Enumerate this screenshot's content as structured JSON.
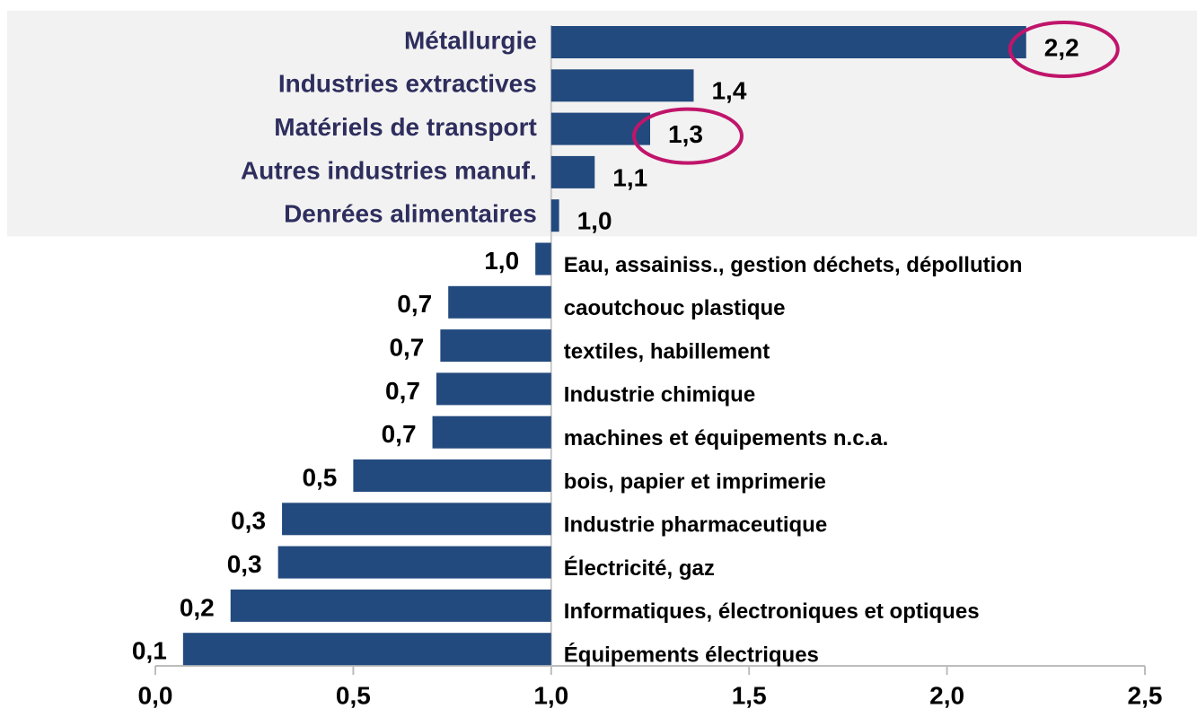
{
  "chart_data": {
    "type": "bar",
    "orientation": "horizontal",
    "baseline": 1,
    "categories": [
      "Métallurgie",
      "Industries extractives",
      "Matériels de transport",
      "Autres industries manuf.",
      "Denrées alimentaires",
      "Eau, assainiss., gestion déchets, dépollution",
      "caoutchouc plastique",
      "textiles, habillement",
      "Industrie chimique",
      "machines et équipements n.c.a.",
      "bois, papier et imprimerie",
      "Industrie pharmaceutique",
      "Électricité, gaz",
      "Informatiques, électroniques et optiques",
      "Équipements électriques"
    ],
    "values": [
      2.2,
      1.36,
      1.25,
      1.11,
      1.02,
      0.96,
      0.74,
      0.72,
      0.71,
      0.7,
      0.5,
      0.32,
      0.31,
      0.19,
      0.07
    ],
    "value_labels": [
      "2,2",
      "1,4",
      "1,3",
      "1,1",
      "1,0",
      "1,0",
      "0,7",
      "0,7",
      "0,7",
      "0,7",
      "0,5",
      "0,3",
      "0,3",
      "0,2",
      "0,1"
    ],
    "color": "#234a7e",
    "xlim": [
      0,
      2.5
    ],
    "xticks": [
      {
        "value": 0,
        "label": "0,0"
      },
      {
        "value": 0.5,
        "label": "0,5"
      },
      {
        "value": 1,
        "label": "1,0"
      },
      {
        "value": 1.5,
        "label": "1,5"
      },
      {
        "value": 2,
        "label": "2,0"
      },
      {
        "value": 2.5,
        "label": "2,5"
      }
    ],
    "shaded": [
      0,
      1,
      2,
      3,
      4
    ],
    "circled": [
      0,
      2
    ]
  }
}
